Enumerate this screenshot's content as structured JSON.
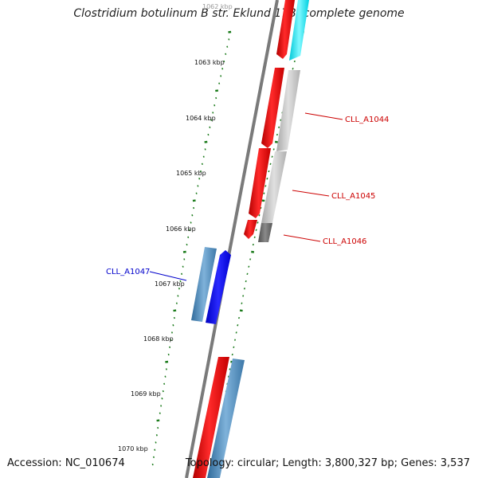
{
  "title": "Clostridium botulinum B str. Eklund 17B, complete genome",
  "accession": "Accession: NC_010674",
  "topology": "Topology: circular; Length: 3,800,327 bp; Genes: 3,537",
  "ticks": [
    "1062 kbp",
    "1063 kbp",
    "1064 kbp",
    "1065 kbp",
    "1066 kbp",
    "1067 kbp",
    "1068 kbp",
    "1069 kbp",
    "1070 kbp"
  ],
  "genes": [
    {
      "label": "CLL_A1044",
      "color": "#cc0000"
    },
    {
      "label": "CLL_A1045",
      "color": "#cc0000"
    },
    {
      "label": "CLL_A1046",
      "color": "#cc0000"
    },
    {
      "label": "CLL_A1047",
      "color": "#0000cc"
    }
  ],
  "colors": {
    "forward": "#ff0000",
    "reverse_blue": "#0000ff",
    "steel": "#4682b4",
    "cyan": "#00e5ee",
    "grey": "#bfbfbf",
    "dark_grey": "#666666",
    "tick_green": "#1a7a1a"
  }
}
